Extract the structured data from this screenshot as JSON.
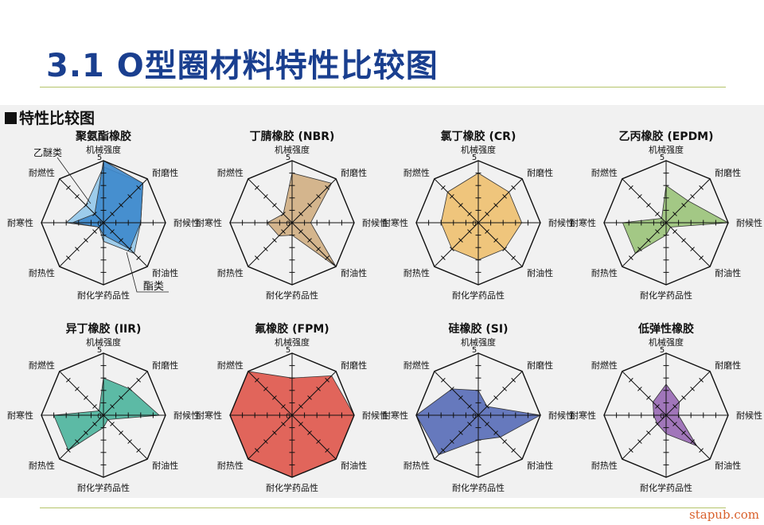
{
  "page": {
    "title": "3.1 O型圈材料特性比较图",
    "panel_heading": "特性比较图",
    "watermark": "stapub.com"
  },
  "axis_labels": [
    "机械强度",
    "耐磨性",
    "耐候性",
    "耐油性",
    "耐化学药品性",
    "耐热性",
    "耐寒性",
    "耐燃性"
  ],
  "scale": {
    "max": 5,
    "max_label": "5",
    "center_label": "0"
  },
  "colors": {
    "axis": "#111111",
    "pu": "#3d88cc",
    "pu_ether": "#8ec6ea",
    "nbr": "#d1b084",
    "cr": "#efc172",
    "epdm": "#9cc47c",
    "iir": "#4fb59e",
    "fpm": "#e0594e",
    "si": "#5a6fb8",
    "low": "#9a6bb5"
  },
  "chart_data": [
    {
      "type": "radar",
      "title": "聚氨酯橡胶",
      "axes": [
        "机械强度",
        "耐磨性",
        "耐候性",
        "耐油性",
        "耐化学药品性",
        "耐热性",
        "耐寒性",
        "耐燃性"
      ],
      "range": [
        0,
        5
      ],
      "series": [
        {
          "name": "乙醚类",
          "values": [
            4.5,
            4.5,
            3,
            3.5,
            1.5,
            0.5,
            3,
            2
          ]
        },
        {
          "name": "酯类",
          "values": [
            5,
            4.5,
            3,
            3,
            1,
            0.5,
            2.5,
            1
          ]
        }
      ]
    },
    {
      "type": "radar",
      "title": "丁腈橡胶 (NBR)",
      "axes": [
        "机械强度",
        "耐磨性",
        "耐候性",
        "耐油性",
        "耐化学药品性",
        "耐热性",
        "耐寒性",
        "耐燃性"
      ],
      "range": [
        0,
        5
      ],
      "series": [
        {
          "values": [
            4,
            4.5,
            1.5,
            5,
            1,
            1.5,
            2,
            1
          ]
        }
      ]
    },
    {
      "type": "radar",
      "title": "氯丁橡胶 (CR)",
      "axes": [
        "机械强度",
        "耐磨性",
        "耐候性",
        "耐油性",
        "耐化学药品性",
        "耐热性",
        "耐寒性",
        "耐燃性"
      ],
      "range": [
        0,
        5
      ],
      "series": [
        {
          "values": [
            4,
            3.5,
            3.5,
            3,
            3,
            3,
            3,
            3.5
          ]
        }
      ]
    },
    {
      "type": "radar",
      "title": "乙丙橡胶 (EPDM)",
      "axes": [
        "机械强度",
        "耐磨性",
        "耐候性",
        "耐油性",
        "耐化学药品性",
        "耐热性",
        "耐寒性",
        "耐燃性"
      ],
      "range": [
        0,
        5
      ],
      "series": [
        {
          "values": [
            3,
            2.5,
            5,
            0.5,
            1,
            3.5,
            3.5,
            0.5
          ]
        }
      ]
    },
    {
      "type": "radar",
      "title": "异丁橡胶 (IIR)",
      "axes": [
        "机械强度",
        "耐磨性",
        "耐候性",
        "耐油性",
        "耐化学药品性",
        "耐热性",
        "耐寒性",
        "耐燃性"
      ],
      "range": [
        0,
        5
      ],
      "series": [
        {
          "values": [
            3,
            3,
            4.5,
            0.5,
            1,
            4,
            4,
            0.5
          ]
        }
      ]
    },
    {
      "type": "radar",
      "title": "氟橡胶 (FPM)",
      "axes": [
        "机械强度",
        "耐磨性",
        "耐候性",
        "耐油性",
        "耐化学药品性",
        "耐热性",
        "耐寒性",
        "耐燃性"
      ],
      "range": [
        0,
        5
      ],
      "series": [
        {
          "values": [
            3,
            4.5,
            5,
            5,
            5,
            5,
            5,
            5
          ]
        }
      ]
    },
    {
      "type": "radar",
      "title": "硅橡胶 (SI)",
      "axes": [
        "机械强度",
        "耐磨性",
        "耐候性",
        "耐油性",
        "耐化学药品性",
        "耐热性",
        "耐寒性",
        "耐燃性"
      ],
      "range": [
        0,
        5
      ],
      "series": [
        {
          "values": [
            2,
            1,
            5,
            2.5,
            2,
            4.5,
            5,
            3
          ]
        }
      ]
    },
    {
      "type": "radar",
      "title": "低弹性橡胶",
      "axes": [
        "机械强度",
        "耐磨性",
        "耐候性",
        "耐油性",
        "耐化学药品性",
        "耐热性",
        "耐寒性",
        "耐燃性"
      ],
      "range": [
        0,
        5
      ],
      "series": [
        {
          "values": [
            2.5,
            1.5,
            1,
            3.5,
            1.5,
            1,
            1,
            1.5
          ]
        }
      ]
    }
  ]
}
